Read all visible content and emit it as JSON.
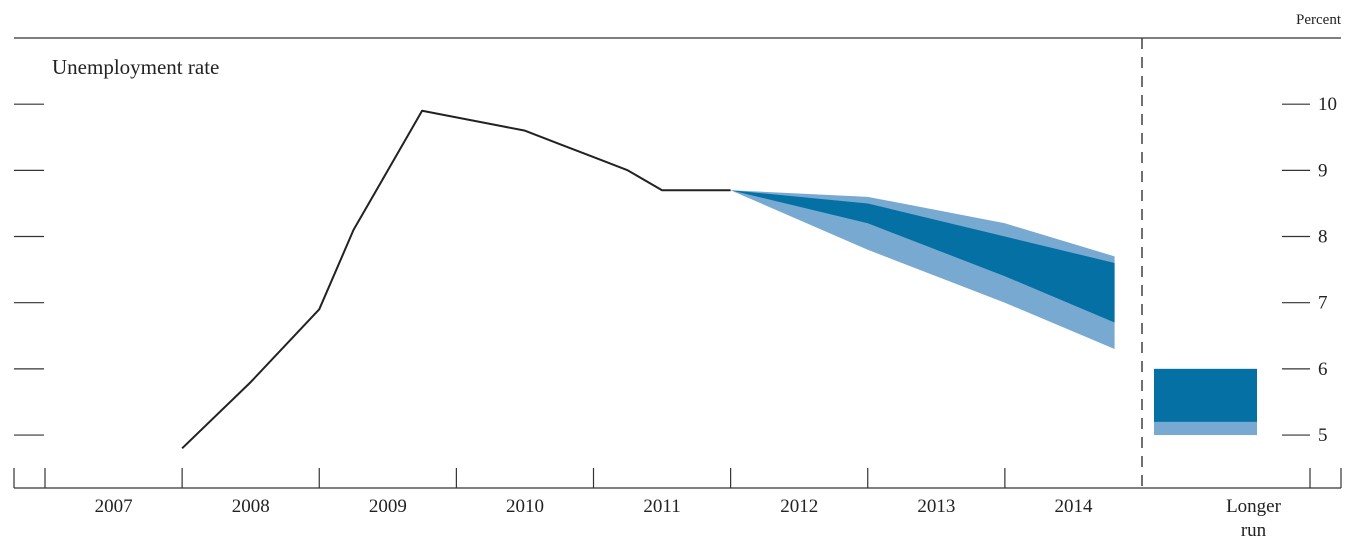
{
  "chart_data": {
    "type": "line",
    "title": "Unemployment rate",
    "ylabel": "Percent",
    "ylim": [
      4.2,
      11.0
    ],
    "yticks": [
      "5",
      "6",
      "7",
      "8",
      "9",
      "10"
    ],
    "xlim": [
      2007.0,
      2015.0
    ],
    "categories": [
      "2007",
      "2008",
      "2009",
      "2010",
      "2011",
      "2012",
      "2013",
      "2014"
    ],
    "longer_run_label": [
      "Longer",
      "run"
    ],
    "series": [
      {
        "x": [
          2008.0,
          2008.5,
          2009.0,
          2009.25,
          2009.5,
          2009.75,
          2010.0,
          2010.25,
          2010.5,
          2010.75,
          2011.0,
          2011.25,
          2011.5,
          2011.75,
          2012.0
        ],
        "y": [
          4.8,
          5.8,
          6.9,
          8.1,
          9.0,
          9.9,
          9.8,
          9.7,
          9.6,
          9.4,
          9.2,
          9.0,
          8.7,
          8.7,
          8.7
        ],
        "color": "#222222"
      }
    ],
    "projection": {
      "x": [
        2012.0,
        2013.0,
        2014.0,
        2014.8
      ],
      "range_low": [
        8.7,
        7.8,
        7.0,
        6.3
      ],
      "range_high": [
        8.7,
        8.6,
        8.2,
        7.7
      ],
      "central_low": [
        8.7,
        8.2,
        7.4,
        6.7
      ],
      "central_high": [
        8.7,
        8.5,
        8.0,
        7.6
      ],
      "range_color": "#78a9d1",
      "central_color": "#0470a3"
    },
    "longer_run": {
      "range_low": 5.0,
      "range_high": 6.0,
      "central_low": 5.2,
      "central_high": 6.0
    },
    "grid": false,
    "legend": "none"
  }
}
